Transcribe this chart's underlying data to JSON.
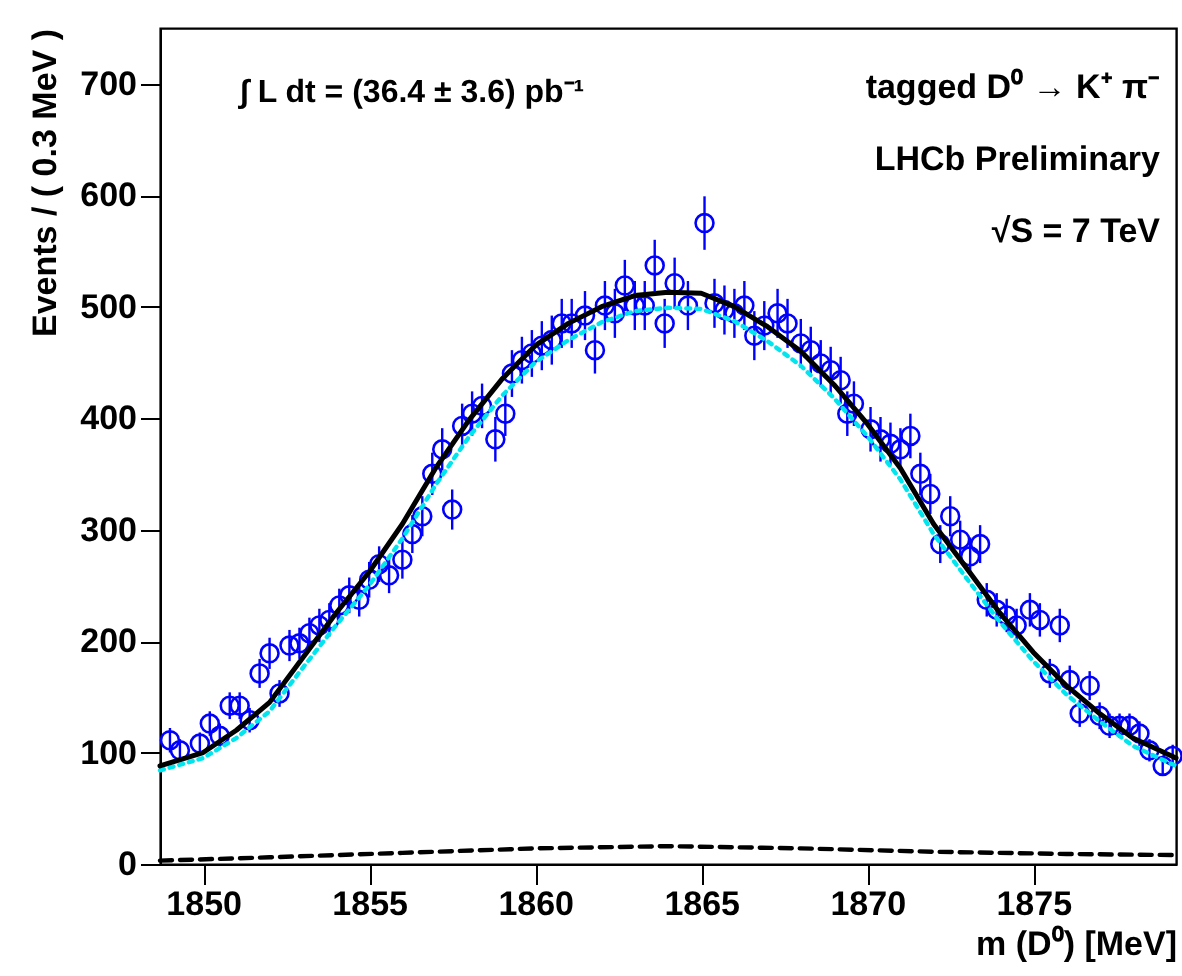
{
  "chart_data": {
    "type": "scatter",
    "xlabel": "m (D⁰) [MeV]",
    "ylabel": "Events / ( 0.3 MeV )",
    "xlim": [
      1848.7,
      1879.3
    ],
    "xticks": [
      1850,
      1855,
      1860,
      1865,
      1870,
      1875
    ],
    "ylim": [
      0,
      750
    ],
    "yticks": [
      0,
      100,
      200,
      300,
      400,
      500,
      600,
      700
    ],
    "grid": false,
    "annotations": [
      "∫ L dt = (36.4 ± 3.6) pb⁻¹",
      "tagged D⁰ → K⁺ π⁻",
      "LHCb Preliminary",
      "√S = 7 TeV"
    ],
    "series": [
      {
        "color": "#0000ff",
        "marker": "circle",
        "x": [
          1849.0,
          1849.3,
          1849.9,
          1850.2,
          1850.5,
          1850.8,
          1851.1,
          1851.4,
          1851.7,
          1852.0,
          1852.3,
          1852.6,
          1852.9,
          1853.2,
          1853.5,
          1853.8,
          1854.1,
          1854.4,
          1854.7,
          1855.0,
          1855.3,
          1855.6,
          1856.0,
          1856.3,
          1856.6,
          1856.9,
          1857.2,
          1857.5,
          1857.8,
          1858.1,
          1858.4,
          1858.8,
          1859.1,
          1859.3,
          1859.6,
          1859.9,
          1860.2,
          1860.5,
          1860.8,
          1861.1,
          1861.5,
          1861.8,
          1862.1,
          1862.4,
          1862.7,
          1863.0,
          1863.3,
          1863.6,
          1863.9,
          1864.2,
          1864.6,
          1865.1,
          1865.4,
          1865.7,
          1866.0,
          1866.3,
          1866.6,
          1866.9,
          1867.3,
          1867.6,
          1868.0,
          1868.3,
          1868.6,
          1868.9,
          1869.2,
          1869.4,
          1869.6,
          1870.1,
          1870.4,
          1870.7,
          1871.0,
          1871.3,
          1871.6,
          1871.9,
          1872.2,
          1872.5,
          1872.8,
          1873.1,
          1873.4,
          1873.6,
          1873.9,
          1874.2,
          1874.5,
          1874.9,
          1875.2,
          1875.5,
          1875.8,
          1876.1,
          1876.4,
          1876.7,
          1877.0,
          1877.3,
          1877.6,
          1877.9,
          1878.2,
          1878.5,
          1878.9,
          1879.2
        ],
        "values": [
          111,
          102,
          108,
          126,
          115,
          142,
          142,
          129,
          171,
          189,
          153,
          196,
          198,
          207,
          214,
          219,
          232,
          241,
          237,
          255,
          269,
          259,
          273,
          296,
          312,
          350,
          372,
          318,
          393,
          404,
          411,
          381,
          404,
          440,
          452,
          458,
          465,
          470,
          485,
          485,
          492,
          461,
          501,
          494,
          519,
          501,
          501,
          537,
          485,
          521,
          501,
          575,
          503,
          497,
          494,
          501,
          474,
          483,
          494,
          485,
          467,
          461,
          449,
          443,
          434,
          404,
          413,
          390,
          381,
          377,
          372,
          384,
          350,
          332,
          287,
          312,
          291,
          276,
          287,
          237,
          228,
          223,
          214,
          228,
          219,
          171,
          214,
          165,
          135,
          160,
          133,
          124,
          124,
          124,
          117,
          102,
          88,
          97
        ],
        "errors": [
          11,
          10,
          10,
          11,
          11,
          12,
          12,
          11,
          13,
          14,
          12,
          14,
          14,
          14,
          15,
          15,
          15,
          16,
          15,
          16,
          16,
          16,
          17,
          17,
          18,
          19,
          19,
          18,
          20,
          20,
          20,
          20,
          20,
          21,
          21,
          21,
          22,
          22,
          22,
          22,
          22,
          21,
          22,
          22,
          23,
          22,
          22,
          23,
          22,
          23,
          22,
          24,
          22,
          22,
          22,
          22,
          22,
          22,
          22,
          22,
          22,
          21,
          21,
          21,
          21,
          20,
          20,
          20,
          20,
          19,
          19,
          20,
          19,
          18,
          17,
          18,
          17,
          17,
          17,
          15,
          15,
          15,
          15,
          15,
          15,
          13,
          15,
          13,
          12,
          13,
          12,
          11,
          11,
          11,
          11,
          10,
          9,
          10
        ]
      },
      {
        "type": "line",
        "color": "#00e5ee",
        "line_style": "dotted",
        "x": [
          1848.7,
          1850,
          1851,
          1852,
          1853,
          1854,
          1855,
          1856,
          1857,
          1858,
          1859,
          1860,
          1861,
          1862,
          1863,
          1864,
          1865,
          1866,
          1867,
          1868,
          1869,
          1870,
          1871,
          1872,
          1873,
          1874,
          1875,
          1876,
          1877,
          1878,
          1879.3
        ],
        "values": [
          84,
          95,
          113,
          137,
          176,
          214,
          250,
          292,
          340,
          383,
          420,
          450,
          470,
          486,
          496,
          499,
          498,
          487,
          469,
          447,
          418,
          384,
          345,
          296,
          256,
          217,
          182,
          152,
          128,
          106,
          88
        ]
      },
      {
        "type": "line",
        "color": "#000000",
        "line_style": "solid",
        "x": [
          1848.7,
          1850,
          1851,
          1852,
          1853,
          1854,
          1855,
          1856,
          1857,
          1858,
          1859,
          1860,
          1861,
          1862,
          1863,
          1864,
          1865,
          1866,
          1867,
          1868,
          1869,
          1870,
          1871,
          1872,
          1873,
          1874,
          1875,
          1876,
          1877,
          1878,
          1879.3
        ],
        "values": [
          88,
          100,
          120,
          145,
          185,
          225,
          262,
          305,
          355,
          398,
          435,
          465,
          485,
          500,
          510,
          513,
          512,
          500,
          482,
          460,
          430,
          395,
          355,
          305,
          265,
          225,
          190,
          160,
          135,
          113,
          95
        ]
      },
      {
        "type": "line",
        "color": "#000000",
        "line_style": "dashed",
        "x": [
          1848.7,
          1852,
          1856,
          1860,
          1864,
          1868,
          1872,
          1876,
          1879.3
        ],
        "values": [
          3,
          6,
          10,
          14,
          16,
          14,
          11,
          9,
          8
        ]
      }
    ]
  }
}
